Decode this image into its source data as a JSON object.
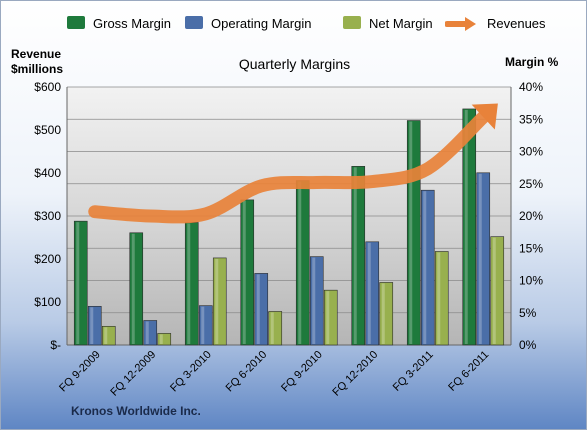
{
  "chart_data": {
    "type": "bar",
    "title": "Quarterly Margins",
    "ylabel_left_line1": "Revenue",
    "ylabel_left_line2": "$millions",
    "ylabel_right": "Margin %",
    "categories": [
      "FQ 9-2009",
      "FQ 12-2009",
      "FQ 3-2010",
      "FQ 6-2010",
      "FQ 9-2010",
      "FQ 12-2010",
      "FQ 3-2011",
      "FQ 6-2011"
    ],
    "series": [
      {
        "name": "Gross Margin",
        "axis": "right",
        "values": [
          19.2,
          17.4,
          19.0,
          22.5,
          25.5,
          27.7,
          34.8,
          36.6
        ]
      },
      {
        "name": "Operating Margin",
        "axis": "right",
        "values": [
          6.0,
          3.8,
          6.1,
          11.1,
          13.7,
          16.0,
          24.0,
          26.7
        ]
      },
      {
        "name": "Net Margin",
        "axis": "right",
        "values": [
          2.9,
          1.8,
          13.5,
          5.2,
          8.5,
          9.7,
          14.5,
          16.8
        ]
      },
      {
        "name": "Revenues",
        "axis": "left",
        "type": "line",
        "values": [
          310,
          300,
          305,
          370,
          378,
          380,
          410,
          530
        ]
      }
    ],
    "ylim_left": [
      0,
      600
    ],
    "ylim_right": [
      0,
      40
    ],
    "yticks_left": [
      "$-",
      "$100",
      "$200",
      "$300",
      "$400",
      "$500",
      "$600"
    ],
    "yticks_right": [
      "0%",
      "5%",
      "10%",
      "15%",
      "20%",
      "25%",
      "30%",
      "35%",
      "40%"
    ],
    "grid": true,
    "legend": "top"
  },
  "colors": {
    "gross": "#1e7a3c",
    "operating": "#4a6ea8",
    "net": "#98b04e",
    "revenues": "#e8823a"
  },
  "footer": "Kronos Worldwide Inc."
}
